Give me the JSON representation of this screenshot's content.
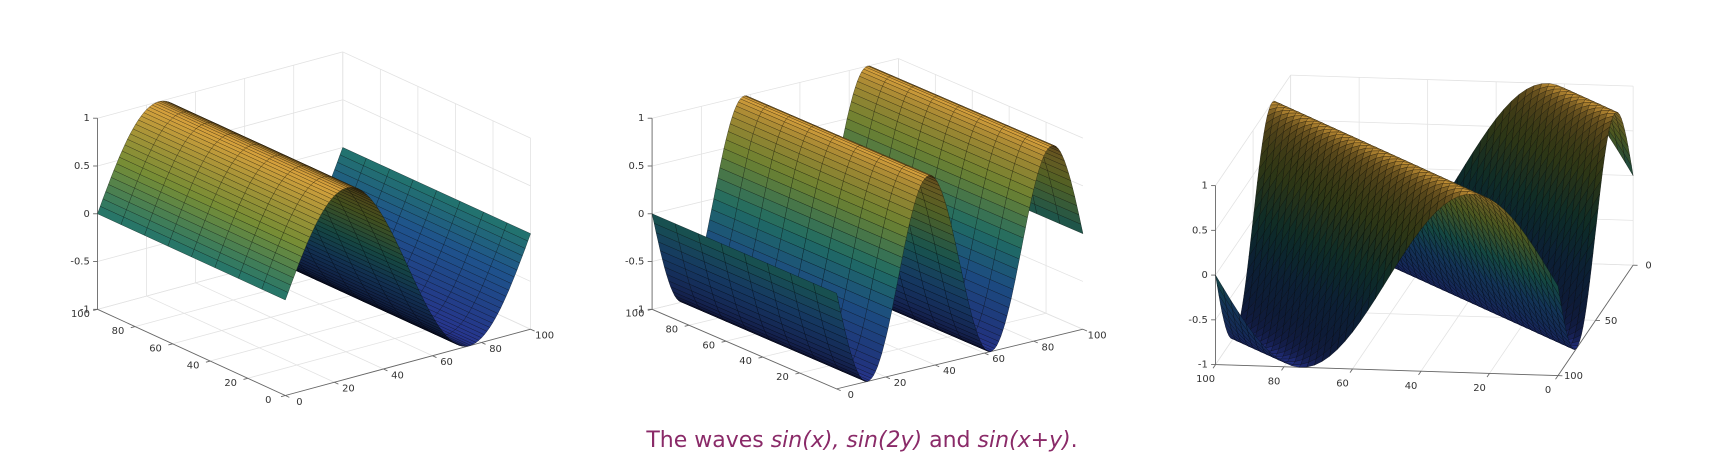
{
  "figure": {
    "panels": [
      {
        "z_ticks": [
          1,
          0.5,
          0,
          -0.5,
          -1
        ],
        "u_ticks": [
          0,
          20,
          40,
          60,
          80,
          100
        ],
        "v_ticks": [
          0,
          20,
          40,
          60,
          80,
          100
        ]
      },
      {
        "z_ticks": [
          1,
          0.5,
          0,
          -0.5,
          -1
        ],
        "u_ticks": [
          20,
          40,
          60,
          80,
          100
        ],
        "v_ticks": [
          0,
          20,
          40,
          60,
          80,
          100
        ]
      },
      {
        "z_ticks": [
          1,
          0.5,
          0,
          -0.5,
          -1
        ],
        "u_ticks": [
          0,
          20,
          40,
          60,
          80,
          100
        ],
        "v_ticks": [
          0,
          50,
          100
        ]
      }
    ],
    "caption": {
      "lead": "The waves",
      "first": "sin(x),",
      "second": "sin(2y)",
      "joiner": "and",
      "third": "sin(x+y)",
      "end": "."
    }
  }
}
